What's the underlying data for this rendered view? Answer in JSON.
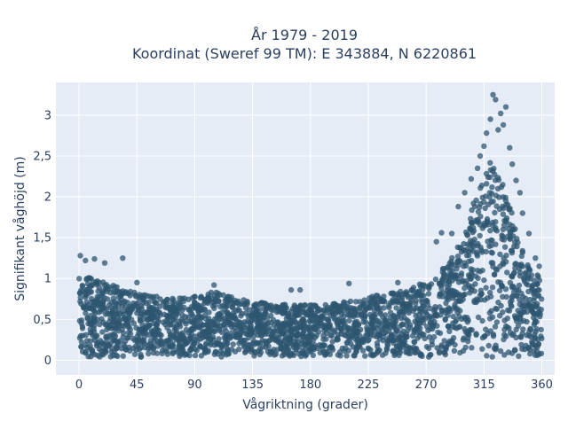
{
  "chart_data": {
    "type": "scatter",
    "title_line1": "År 1979 - 2019",
    "title_line2": "Koordinat (Sweref 99 TM): E 343884, N 6220861",
    "xlabel": "Vågriktning (grader)",
    "ylabel": "Signifikant våghöjd (m)",
    "xlim": [
      -18,
      370
    ],
    "ylim": [
      -0.18,
      3.4
    ],
    "x_ticks": [
      0,
      45,
      90,
      135,
      180,
      225,
      270,
      315,
      360
    ],
    "x_tick_labels": [
      "0",
      "45",
      "90",
      "135",
      "180",
      "225",
      "270",
      "315",
      "360"
    ],
    "y_ticks": [
      0,
      0.5,
      1,
      1.5,
      2,
      2.5,
      3
    ],
    "y_tick_labels": [
      "0",
      "0,5",
      "1",
      "1,5",
      "2",
      "2,5",
      "3"
    ],
    "grid": true,
    "colors": {
      "marker": "#2e5670",
      "plot_bg": "#e5ecf6",
      "grid": "#ffffff",
      "text": "#2a3f5f"
    },
    "envelope": {
      "direction": [
        0,
        10,
        20,
        30,
        45,
        60,
        75,
        90,
        105,
        120,
        135,
        150,
        165,
        180,
        195,
        210,
        225,
        240,
        255,
        270,
        280,
        290,
        300,
        305,
        310,
        315,
        320,
        325,
        330,
        335,
        340,
        345,
        350,
        355,
        360
      ],
      "max_height": [
        1.05,
        1.0,
        0.95,
        0.9,
        0.82,
        0.78,
        0.76,
        0.78,
        0.85,
        0.78,
        0.72,
        0.7,
        0.68,
        0.68,
        0.7,
        0.72,
        0.78,
        0.82,
        0.86,
        0.95,
        1.05,
        1.25,
        1.6,
        1.85,
        2.05,
        2.25,
        2.5,
        2.45,
        2.2,
        1.9,
        1.6,
        1.35,
        1.2,
        1.1,
        1.05
      ]
    },
    "outliers": [
      {
        "x": 1,
        "y": 1.28
      },
      {
        "x": 5,
        "y": 1.22
      },
      {
        "x": 12,
        "y": 1.24
      },
      {
        "x": 20,
        "y": 1.19
      },
      {
        "x": 34,
        "y": 1.25
      },
      {
        "x": 45,
        "y": 0.95
      },
      {
        "x": 105,
        "y": 0.92
      },
      {
        "x": 165,
        "y": 0.86
      },
      {
        "x": 172,
        "y": 0.86
      },
      {
        "x": 210,
        "y": 0.94
      },
      {
        "x": 248,
        "y": 0.95
      },
      {
        "x": 265,
        "y": 0.93
      },
      {
        "x": 283,
        "y": 1.12
      },
      {
        "x": 278,
        "y": 1.45
      },
      {
        "x": 282,
        "y": 1.56
      },
      {
        "x": 290,
        "y": 1.55
      },
      {
        "x": 295,
        "y": 1.88
      },
      {
        "x": 300,
        "y": 2.05
      },
      {
        "x": 305,
        "y": 2.22
      },
      {
        "x": 310,
        "y": 2.35
      },
      {
        "x": 315,
        "y": 2.62
      },
      {
        "x": 317,
        "y": 2.78
      },
      {
        "x": 320,
        "y": 2.95
      },
      {
        "x": 322,
        "y": 3.25
      },
      {
        "x": 324,
        "y": 3.19
      },
      {
        "x": 326,
        "y": 2.82
      },
      {
        "x": 328,
        "y": 3.02
      },
      {
        "x": 330,
        "y": 2.88
      },
      {
        "x": 332,
        "y": 3.1
      },
      {
        "x": 335,
        "y": 2.6
      },
      {
        "x": 340,
        "y": 2.2
      },
      {
        "x": 343,
        "y": 2.05
      },
      {
        "x": 350,
        "y": 1.55
      },
      {
        "x": 355,
        "y": 1.25
      },
      {
        "x": 358,
        "y": 1.15
      },
      {
        "x": 312,
        "y": 2.5
      },
      {
        "x": 337,
        "y": 2.4
      },
      {
        "x": 345,
        "y": 1.8
      }
    ]
  }
}
